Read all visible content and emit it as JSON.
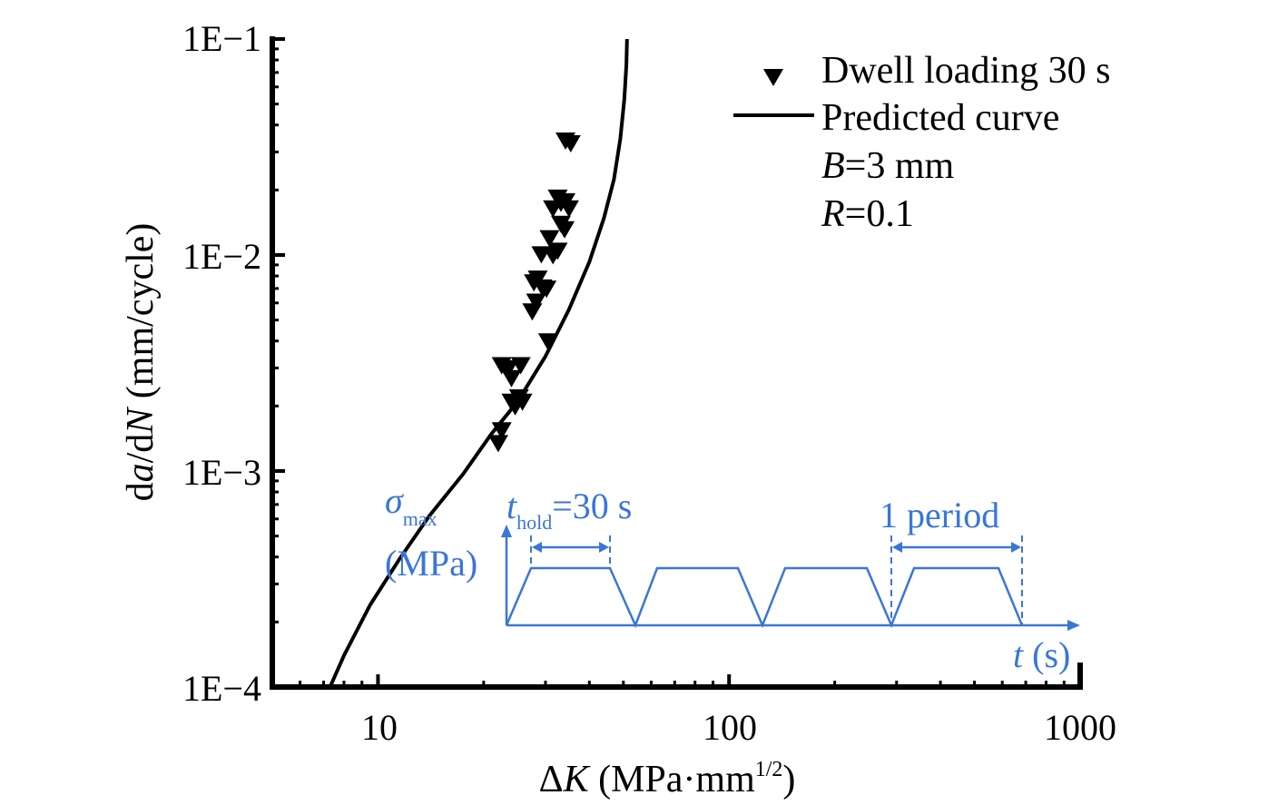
{
  "chart_data": {
    "type": "scatter",
    "xscale": "log",
    "yscale": "log",
    "xlim": [
      5,
      1000
    ],
    "ylim": [
      0.0001,
      0.1
    ],
    "x_ticks": [
      "10",
      "100",
      "1000"
    ],
    "y_ticks": [
      "1E−1",
      "1E−2",
      "1E−3",
      "1E−4"
    ],
    "xlabel": {
      "prefix": "Δ",
      "var": "K",
      "unit": " (MPa·mm",
      "sup": "1/2",
      "close": ")"
    },
    "ylabel": {
      "p1": "d",
      "v1": "a",
      "p2": "/d",
      "v2": "N",
      "unit": " (mm/cycle)"
    },
    "series": [
      {
        "name": "Dwell loading 30 s",
        "kind": "scatter",
        "marker": "triangle-down",
        "points": [
          [
            22.0,
            0.00135
          ],
          [
            22.5,
            0.00155
          ],
          [
            22.5,
            0.0031
          ],
          [
            23.5,
            0.003
          ],
          [
            24.0,
            0.0027
          ],
          [
            25.5,
            0.0031
          ],
          [
            24.0,
            0.0021
          ],
          [
            24.6,
            0.002
          ],
          [
            25.2,
            0.0022
          ],
          [
            25.8,
            0.0021
          ],
          [
            27.5,
            0.0055
          ],
          [
            28.2,
            0.0061
          ],
          [
            27.8,
            0.0075
          ],
          [
            28.5,
            0.0078
          ],
          [
            29.4,
            0.0071
          ],
          [
            30.2,
            0.007
          ],
          [
            29.2,
            0.0101
          ],
          [
            30.8,
            0.012
          ],
          [
            31.5,
            0.01
          ],
          [
            32.5,
            0.0105
          ],
          [
            31.5,
            0.0165
          ],
          [
            32.5,
            0.0185
          ],
          [
            33.2,
            0.0175
          ],
          [
            34.2,
            0.0178
          ],
          [
            33.2,
            0.014
          ],
          [
            34.0,
            0.0132
          ],
          [
            35.0,
            0.0165
          ],
          [
            34.2,
            0.034
          ],
          [
            35.4,
            0.033
          ],
          [
            30.5,
            0.004
          ]
        ]
      },
      {
        "name": "Predicted curve",
        "kind": "line",
        "points": [
          [
            7.3,
            0.0001
          ],
          [
            8.0,
            0.00014
          ],
          [
            9.5,
            0.00024
          ],
          [
            11.5,
            0.00039
          ],
          [
            14.0,
            0.00062
          ],
          [
            17.5,
            0.00097
          ],
          [
            21.0,
            0.00148
          ],
          [
            25.0,
            0.0021
          ],
          [
            30.0,
            0.0034
          ],
          [
            35.0,
            0.0056
          ],
          [
            40.0,
            0.0093
          ],
          [
            44.0,
            0.0148
          ],
          [
            47.0,
            0.0224
          ],
          [
            49.0,
            0.0345
          ],
          [
            50.3,
            0.0525
          ],
          [
            51.0,
            0.076
          ],
          [
            51.2,
            0.1
          ]
        ]
      }
    ],
    "annotations": [
      {
        "pre": "",
        "var": "B",
        "post": "=3 mm"
      },
      {
        "pre": "",
        "var": "R",
        "post": "=0.1"
      }
    ],
    "inset": {
      "ylabel_var": "σ",
      "ylabel_sub": "max",
      "ylabel_unit": "(MPa)",
      "hold_var": "t",
      "hold_sub": "hold",
      "hold_value": "=30 s",
      "period_label": "1 period",
      "xlabel_var": "t",
      "xlabel_unit": " (s)"
    }
  },
  "colors": {
    "inset": "#3a76d8",
    "data": "#000000"
  }
}
